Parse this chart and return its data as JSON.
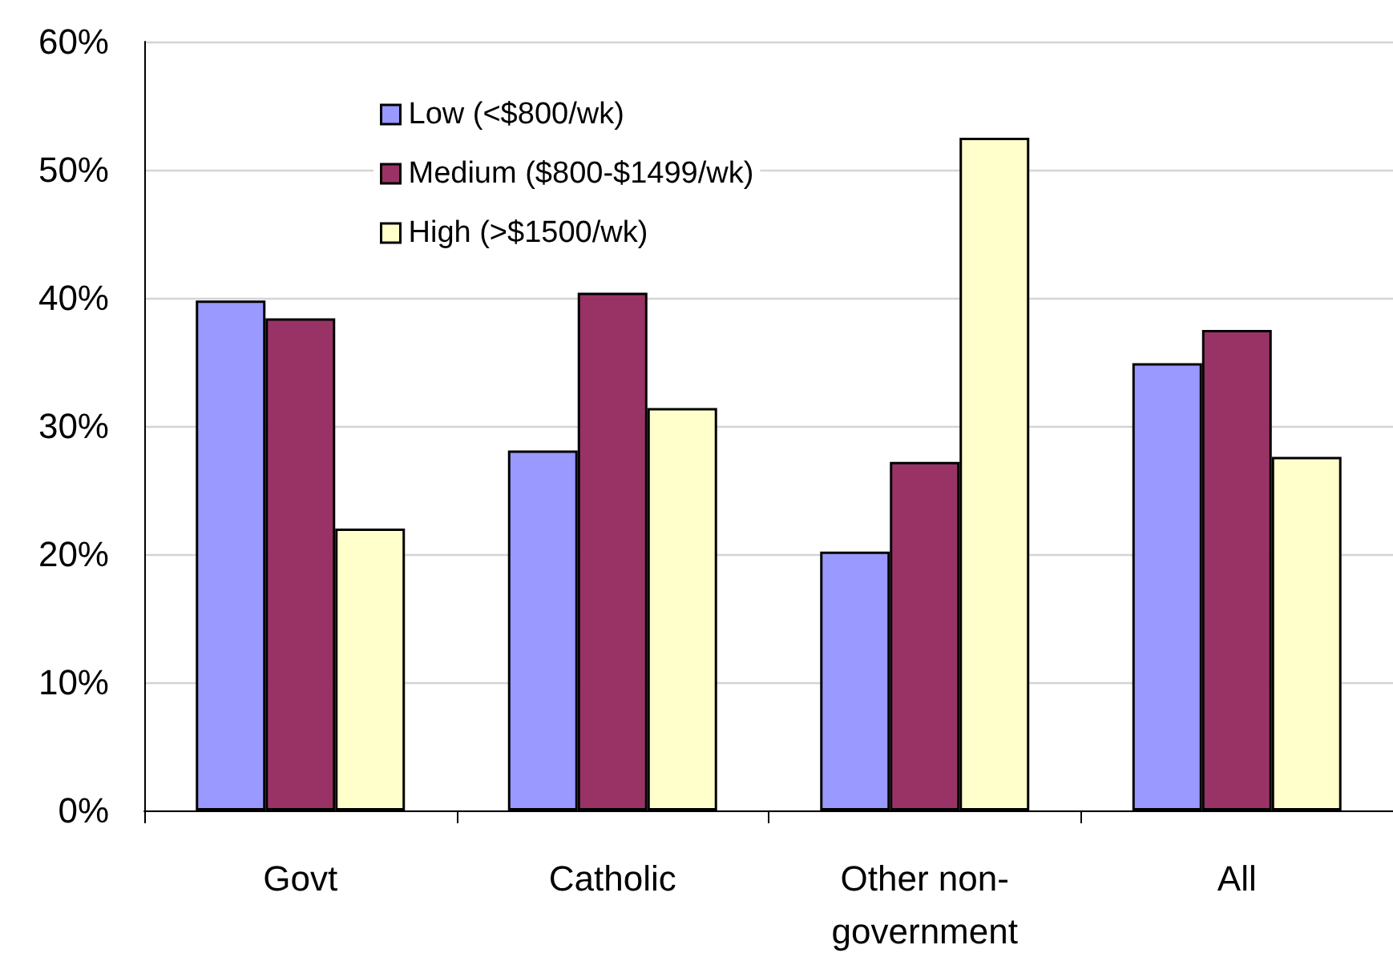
{
  "chart_data": {
    "type": "bar",
    "categories": [
      "Govt",
      "Catholic",
      "Other non-government",
      "All"
    ],
    "series": [
      {
        "name": "Low (<$800/wk)",
        "color": "#9999ff",
        "values": [
          39.8,
          28.1,
          20.2,
          34.9
        ]
      },
      {
        "name": "Medium ($800-$1499/wk)",
        "color": "#993366",
        "values": [
          38.4,
          40.4,
          27.2,
          37.5
        ]
      },
      {
        "name": "High (>$1500/wk)",
        "color": "#ffffcc",
        "values": [
          22.0,
          31.4,
          52.5,
          27.6
        ]
      }
    ],
    "ylim": [
      0,
      60
    ],
    "yticks": [
      {
        "value": 0,
        "label": "0%"
      },
      {
        "value": 10,
        "label": "10%"
      },
      {
        "value": 20,
        "label": "20%"
      },
      {
        "value": 30,
        "label": "30%"
      },
      {
        "value": 40,
        "label": "40%"
      },
      {
        "value": 50,
        "label": "50%"
      },
      {
        "value": 60,
        "label": "60%"
      }
    ],
    "grid": "y",
    "legend": "top"
  }
}
